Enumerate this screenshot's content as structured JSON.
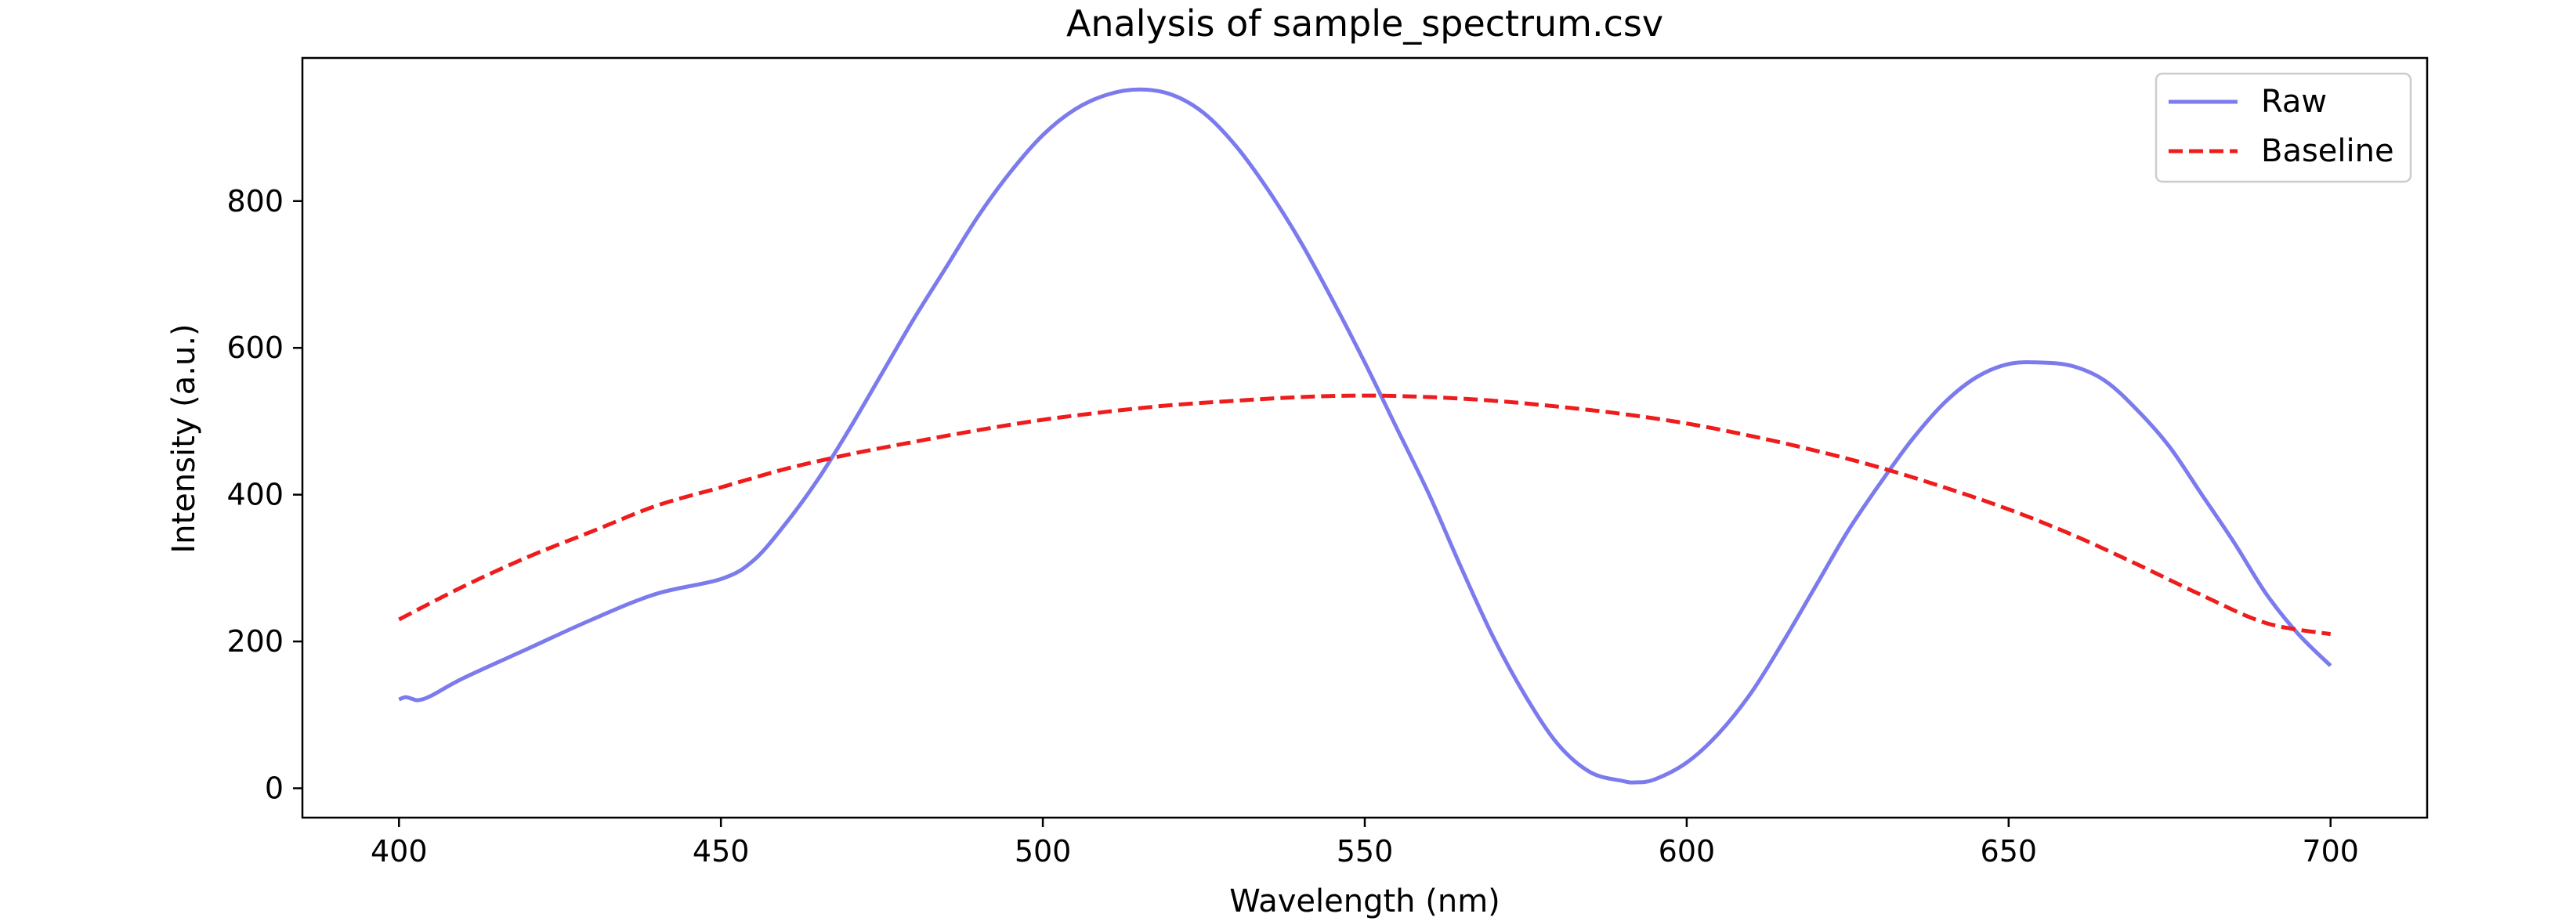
{
  "chart_data": {
    "type": "line",
    "title": "Analysis of sample_spectrum.csv",
    "xlabel": "Wavelength (nm)",
    "ylabel": "Intensity (a.u.)",
    "xlim": [
      385,
      715
    ],
    "ylim": [
      -40,
      995
    ],
    "xticks": [
      400,
      450,
      500,
      550,
      600,
      650,
      700
    ],
    "yticks": [
      0,
      200,
      400,
      600,
      800
    ],
    "legend_position": "top-right",
    "grid": false,
    "series": [
      {
        "name": "Raw",
        "color": "#7b7bee",
        "style": "solid",
        "x": [
          400,
          401,
          402,
          403,
          405,
          410,
          420,
          430,
          440,
          450,
          455,
          460,
          465,
          470,
          475,
          480,
          485,
          490,
          495,
          500,
          505,
          510,
          515,
          520,
          525,
          530,
          535,
          540,
          545,
          550,
          555,
          560,
          565,
          570,
          575,
          580,
          585,
          590,
          592,
          595,
          600,
          605,
          610,
          615,
          620,
          625,
          630,
          635,
          640,
          645,
          650,
          655,
          660,
          665,
          670,
          675,
          680,
          685,
          690,
          695,
          700
        ],
        "y": [
          121,
          124,
          122,
          120,
          126,
          150,
          190,
          230,
          265,
          285,
          310,
          360,
          420,
          490,
          565,
          640,
          710,
          780,
          840,
          890,
          925,
          945,
          952,
          945,
          920,
          875,
          815,
          745,
          665,
          580,
          490,
          400,
          300,
          205,
          125,
          60,
          22,
          10,
          8,
          12,
          35,
          75,
          130,
          200,
          275,
          350,
          415,
          475,
          525,
          560,
          578,
          580,
          575,
          555,
          515,
          465,
          400,
          335,
          265,
          210,
          167
        ]
      },
      {
        "name": "Baseline",
        "color": "#ee1c1c",
        "style": "dashed",
        "x": [
          400,
          410,
          420,
          430,
          440,
          450,
          460,
          470,
          480,
          490,
          500,
          510,
          520,
          530,
          540,
          550,
          560,
          570,
          580,
          590,
          600,
          610,
          620,
          630,
          640,
          650,
          660,
          670,
          680,
          690,
          700
        ],
        "y": [
          230,
          275,
          315,
          350,
          385,
          410,
          435,
          455,
          472,
          488,
          502,
          513,
          522,
          528,
          533,
          535,
          533,
          528,
          520,
          510,
          497,
          480,
          460,
          437,
          410,
          380,
          345,
          305,
          263,
          225,
          210
        ]
      }
    ]
  }
}
